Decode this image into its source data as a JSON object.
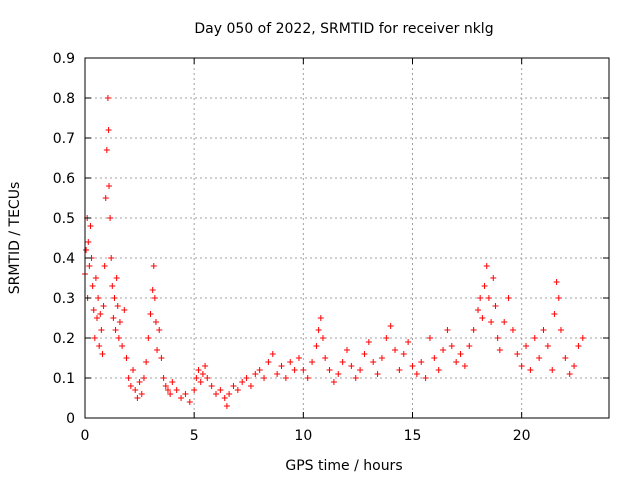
{
  "chart_data": {
    "type": "scatter",
    "title": "Day 050 of 2022, SRMTID for receiver nklg",
    "xlabel": "GPS time / hours",
    "ylabel": "SRMTID / TECUs",
    "xlim": [
      0,
      24
    ],
    "ylim": [
      0,
      0.9
    ],
    "x_ticks": [
      0,
      5,
      10,
      15,
      20
    ],
    "y_ticks": [
      0,
      0.1,
      0.2,
      0.3,
      0.4,
      0.5,
      0.6,
      0.7,
      0.8,
      0.9
    ],
    "grid": true,
    "marker": "+",
    "series": [
      {
        "name": "nklg",
        "color": "#ff0000",
        "points": [
          [
            0.0,
            0.36
          ],
          [
            0.05,
            0.42
          ],
          [
            0.1,
            0.5
          ],
          [
            0.12,
            0.3
          ],
          [
            0.15,
            0.44
          ],
          [
            0.2,
            0.38
          ],
          [
            0.25,
            0.48
          ],
          [
            0.3,
            0.4
          ],
          [
            0.35,
            0.33
          ],
          [
            0.4,
            0.27
          ],
          [
            0.45,
            0.2
          ],
          [
            0.5,
            0.35
          ],
          [
            0.55,
            0.25
          ],
          [
            0.6,
            0.3
          ],
          [
            0.65,
            0.18
          ],
          [
            0.7,
            0.26
          ],
          [
            0.75,
            0.22
          ],
          [
            0.8,
            0.16
          ],
          [
            0.85,
            0.28
          ],
          [
            0.9,
            0.38
          ],
          [
            0.95,
            0.55
          ],
          [
            1.0,
            0.67
          ],
          [
            1.05,
            0.8
          ],
          [
            1.08,
            0.72
          ],
          [
            1.1,
            0.58
          ],
          [
            1.15,
            0.5
          ],
          [
            1.2,
            0.4
          ],
          [
            1.25,
            0.33
          ],
          [
            1.3,
            0.25
          ],
          [
            1.35,
            0.3
          ],
          [
            1.4,
            0.22
          ],
          [
            1.45,
            0.35
          ],
          [
            1.5,
            0.28
          ],
          [
            1.55,
            0.2
          ],
          [
            1.6,
            0.24
          ],
          [
            1.7,
            0.18
          ],
          [
            1.8,
            0.27
          ],
          [
            1.9,
            0.15
          ],
          [
            2.0,
            0.1
          ],
          [
            2.1,
            0.08
          ],
          [
            2.2,
            0.12
          ],
          [
            2.3,
            0.07
          ],
          [
            2.4,
            0.05
          ],
          [
            2.5,
            0.09
          ],
          [
            2.6,
            0.06
          ],
          [
            2.7,
            0.1
          ],
          [
            2.8,
            0.14
          ],
          [
            2.9,
            0.2
          ],
          [
            3.0,
            0.26
          ],
          [
            3.1,
            0.32
          ],
          [
            3.15,
            0.38
          ],
          [
            3.2,
            0.3
          ],
          [
            3.25,
            0.24
          ],
          [
            3.3,
            0.17
          ],
          [
            3.4,
            0.22
          ],
          [
            3.5,
            0.15
          ],
          [
            3.6,
            0.1
          ],
          [
            3.7,
            0.08
          ],
          [
            3.8,
            0.07
          ],
          [
            3.9,
            0.06
          ],
          [
            4.0,
            0.09
          ],
          [
            4.2,
            0.07
          ],
          [
            4.4,
            0.05
          ],
          [
            4.6,
            0.06
          ],
          [
            4.8,
            0.04
          ],
          [
            5.0,
            0.07
          ],
          [
            5.1,
            0.1
          ],
          [
            5.2,
            0.12
          ],
          [
            5.3,
            0.09
          ],
          [
            5.4,
            0.11
          ],
          [
            5.5,
            0.13
          ],
          [
            5.6,
            0.1
          ],
          [
            5.8,
            0.08
          ],
          [
            6.0,
            0.06
          ],
          [
            6.2,
            0.07
          ],
          [
            6.4,
            0.05
          ],
          [
            6.5,
            0.03
          ],
          [
            6.6,
            0.06
          ],
          [
            6.8,
            0.08
          ],
          [
            7.0,
            0.07
          ],
          [
            7.2,
            0.09
          ],
          [
            7.4,
            0.1
          ],
          [
            7.6,
            0.08
          ],
          [
            7.8,
            0.11
          ],
          [
            8.0,
            0.12
          ],
          [
            8.2,
            0.1
          ],
          [
            8.4,
            0.14
          ],
          [
            8.6,
            0.16
          ],
          [
            8.8,
            0.11
          ],
          [
            9.0,
            0.13
          ],
          [
            9.2,
            0.1
          ],
          [
            9.4,
            0.14
          ],
          [
            9.6,
            0.12
          ],
          [
            9.8,
            0.15
          ],
          [
            10.0,
            0.12
          ],
          [
            10.2,
            0.1
          ],
          [
            10.4,
            0.14
          ],
          [
            10.6,
            0.18
          ],
          [
            10.7,
            0.22
          ],
          [
            10.8,
            0.25
          ],
          [
            10.9,
            0.2
          ],
          [
            11.0,
            0.15
          ],
          [
            11.2,
            0.12
          ],
          [
            11.4,
            0.09
          ],
          [
            11.6,
            0.11
          ],
          [
            11.8,
            0.14
          ],
          [
            12.0,
            0.17
          ],
          [
            12.2,
            0.13
          ],
          [
            12.4,
            0.1
          ],
          [
            12.6,
            0.12
          ],
          [
            12.8,
            0.16
          ],
          [
            13.0,
            0.19
          ],
          [
            13.2,
            0.14
          ],
          [
            13.4,
            0.11
          ],
          [
            13.6,
            0.15
          ],
          [
            13.8,
            0.2
          ],
          [
            14.0,
            0.23
          ],
          [
            14.2,
            0.17
          ],
          [
            14.4,
            0.12
          ],
          [
            14.6,
            0.16
          ],
          [
            14.8,
            0.19
          ],
          [
            15.0,
            0.13
          ],
          [
            15.2,
            0.11
          ],
          [
            15.4,
            0.14
          ],
          [
            15.6,
            0.1
          ],
          [
            15.8,
            0.2
          ],
          [
            16.0,
            0.15
          ],
          [
            16.2,
            0.12
          ],
          [
            16.4,
            0.17
          ],
          [
            16.6,
            0.22
          ],
          [
            16.8,
            0.18
          ],
          [
            17.0,
            0.14
          ],
          [
            17.2,
            0.16
          ],
          [
            17.4,
            0.13
          ],
          [
            17.6,
            0.18
          ],
          [
            17.8,
            0.22
          ],
          [
            18.0,
            0.27
          ],
          [
            18.1,
            0.3
          ],
          [
            18.2,
            0.25
          ],
          [
            18.3,
            0.33
          ],
          [
            18.4,
            0.38
          ],
          [
            18.5,
            0.3
          ],
          [
            18.6,
            0.24
          ],
          [
            18.7,
            0.35
          ],
          [
            18.8,
            0.28
          ],
          [
            18.9,
            0.2
          ],
          [
            19.0,
            0.17
          ],
          [
            19.2,
            0.24
          ],
          [
            19.4,
            0.3
          ],
          [
            19.6,
            0.22
          ],
          [
            19.8,
            0.16
          ],
          [
            20.0,
            0.13
          ],
          [
            20.2,
            0.18
          ],
          [
            20.4,
            0.12
          ],
          [
            20.6,
            0.2
          ],
          [
            20.8,
            0.15
          ],
          [
            21.0,
            0.22
          ],
          [
            21.2,
            0.18
          ],
          [
            21.4,
            0.12
          ],
          [
            21.5,
            0.26
          ],
          [
            21.6,
            0.34
          ],
          [
            21.7,
            0.3
          ],
          [
            21.8,
            0.22
          ],
          [
            22.0,
            0.15
          ],
          [
            22.2,
            0.11
          ],
          [
            22.4,
            0.13
          ],
          [
            22.6,
            0.18
          ],
          [
            22.8,
            0.2
          ]
        ]
      }
    ]
  }
}
